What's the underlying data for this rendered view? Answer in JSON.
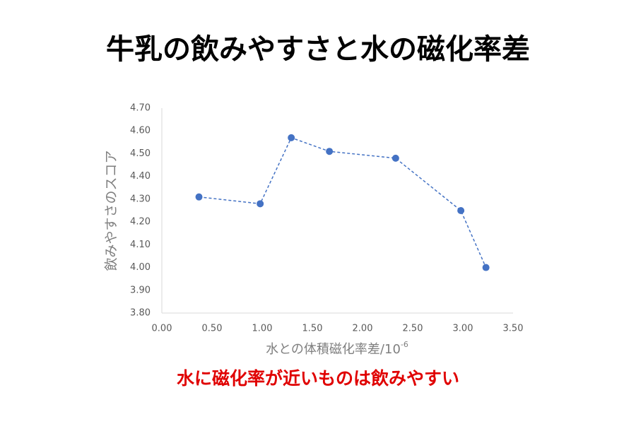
{
  "chart_data": {
    "type": "line",
    "title": "牛乳の飲みやすさと水の磁化率差",
    "x_label": "水との体積磁化率差/10",
    "x_label_exponent": "-6",
    "y_label": "飲みやすさのスコア",
    "annotation": "水に磁化率が近いものは飲みやすい",
    "x": [
      0.37,
      0.98,
      1.29,
      1.67,
      2.33,
      2.98,
      3.23
    ],
    "series": [
      {
        "color": "#4472c4",
        "values": [
          4.31,
          4.28,
          4.57,
          4.51,
          4.48,
          4.25,
          4.0
        ]
      }
    ],
    "xlim": [
      0,
      3.5
    ],
    "xticks": [
      {
        "value": 0,
        "label": "0.00"
      },
      {
        "value": 0.5,
        "label": "0.50"
      },
      {
        "value": 1,
        "label": "1.00"
      },
      {
        "value": 1.5,
        "label": "1.50"
      },
      {
        "value": 2,
        "label": "2.00"
      },
      {
        "value": 2.5,
        "label": "2.50"
      },
      {
        "value": 3,
        "label": "3.00"
      },
      {
        "value": 3.5,
        "label": "3.50"
      }
    ],
    "ylim": [
      3.8,
      4.7
    ],
    "yticks": [
      {
        "value": 3.8,
        "label": "3.80"
      },
      {
        "value": 3.9,
        "label": "3.90"
      },
      {
        "value": 4,
        "label": "4.00"
      },
      {
        "value": 4.1,
        "label": "4.10"
      },
      {
        "value": 4.2,
        "label": "4.20"
      },
      {
        "value": 4.3,
        "label": "4.30"
      },
      {
        "value": 4.4,
        "label": "4.40"
      },
      {
        "value": 4.5,
        "label": "4.50"
      },
      {
        "value": 4.6,
        "label": "4.60"
      },
      {
        "value": 4.7,
        "label": "4.70"
      }
    ],
    "grid": false,
    "line_style": "dashed"
  }
}
